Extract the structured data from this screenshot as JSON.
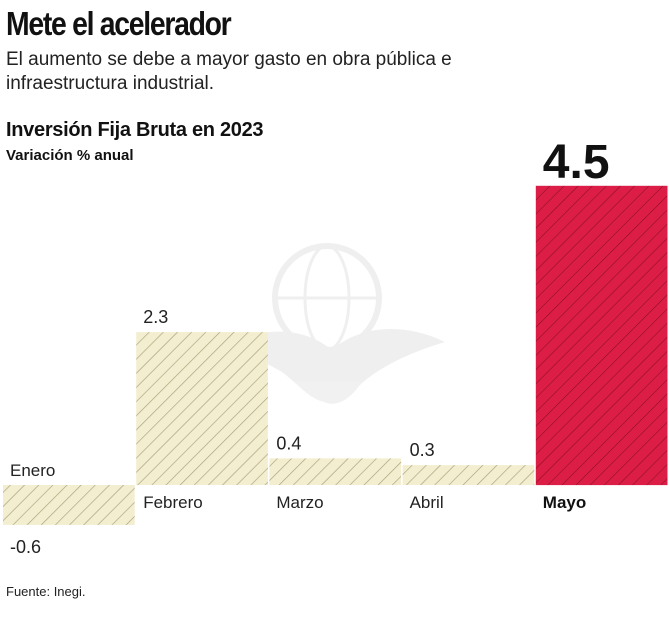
{
  "headline": "Mete el acelerador",
  "deck": "El aumento se debe a mayor gasto en obra pública e infraestructura industrial.",
  "source": "Fuente: Inegi.",
  "colors": {
    "normal_fill": "#f3eed0",
    "normal_stroke": "#a79f79",
    "highlight_fill": "#dc1e46",
    "highlight_stroke": "#8a0c25",
    "text": "#111111"
  },
  "chart_data": {
    "type": "bar",
    "title": "Inversión Fija Bruta en 2023",
    "subtitle": "Variación % anual",
    "xlabel": "",
    "ylabel": "",
    "categories": [
      "Enero",
      "Febrero",
      "Marzo",
      "Abril",
      "Mayo"
    ],
    "values": [
      -0.6,
      2.3,
      0.4,
      0.3,
      4.5
    ],
    "labels": [
      "-0.6",
      "2.3",
      "0.4",
      "0.3",
      "4.5"
    ],
    "highlight_index": 4,
    "ylim": [
      -0.6,
      4.5
    ],
    "grid": false,
    "legend": "none"
  }
}
